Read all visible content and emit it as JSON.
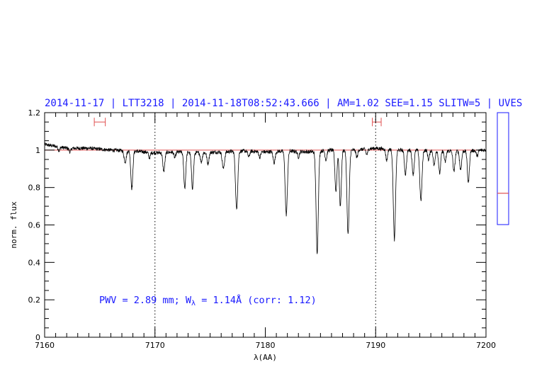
{
  "header": {
    "text": "2014-11-17 | LTT3218 | 2014-11-18T08:52:43.666 | AM=1.02  SEE=1.15  SLITW=5 | UVES"
  },
  "annotation": {
    "prefix": "PWV = 2.89 mm; W",
    "subscript": "λ",
    "suffix": " = 1.14Å (corr: 1.12)"
  },
  "colors": {
    "header": "#1a1aff",
    "spectrum": "#000000",
    "continuum": "#e05050",
    "markers": "#e05050",
    "side_box": "#1a1aff"
  },
  "chart_data": {
    "type": "line",
    "xlabel": "λ(AA)",
    "ylabel": "norm. flux",
    "xlim": [
      7160,
      7200
    ],
    "ylim": [
      0,
      1.2
    ],
    "x_ticks": [
      7160,
      7170,
      7180,
      7190,
      7200
    ],
    "y_ticks": [
      0,
      0.2,
      0.4,
      0.6,
      0.8,
      1,
      1.2
    ],
    "x_tick_labels": [
      "7160",
      "7170",
      "7180",
      "7190",
      "7200"
    ],
    "y_tick_labels": [
      "0",
      "0.2",
      "0.4",
      "0.6",
      "0.8",
      "1",
      "1.2"
    ],
    "continuum_level": 1.0,
    "vertical_dotted_lines": [
      7170,
      7190
    ],
    "range_markers": [
      {
        "x1": 7164.5,
        "x2": 7165.5,
        "y": 1.15
      },
      {
        "x1": 7189.7,
        "x2": 7190.5,
        "y": 1.15
      }
    ],
    "continuum_anchor": [
      [
        7160,
        1.03
      ],
      [
        7162,
        1.01
      ],
      [
        7164,
        1.01
      ],
      [
        7166,
        1.0
      ],
      [
        7168,
        0.995
      ],
      [
        7170,
        0.985
      ],
      [
        7172,
        0.99
      ],
      [
        7174,
        0.985
      ],
      [
        7176,
        0.99
      ],
      [
        7178,
        0.995
      ],
      [
        7180,
        0.99
      ],
      [
        7182,
        0.995
      ],
      [
        7184,
        0.99
      ],
      [
        7186,
        1.0
      ],
      [
        7188,
        1.0
      ],
      [
        7190,
        1.01
      ],
      [
        7192,
        1.0
      ],
      [
        7194,
        1.0
      ],
      [
        7196,
        0.995
      ],
      [
        7198,
        0.995
      ],
      [
        7200,
        1.0
      ]
    ],
    "absorption_lines": [
      {
        "x": 7161.3,
        "depth": 0.02,
        "width": 0.08
      },
      {
        "x": 7162.3,
        "depth": 0.02,
        "width": 0.08
      },
      {
        "x": 7167.3,
        "depth": 0.06,
        "width": 0.1
      },
      {
        "x": 7167.9,
        "depth": 0.2,
        "width": 0.09
      },
      {
        "x": 7169.5,
        "depth": 0.03,
        "width": 0.08
      },
      {
        "x": 7170.8,
        "depth": 0.1,
        "width": 0.09
      },
      {
        "x": 7171.8,
        "depth": 0.03,
        "width": 0.08
      },
      {
        "x": 7172.7,
        "depth": 0.19,
        "width": 0.09
      },
      {
        "x": 7173.4,
        "depth": 0.19,
        "width": 0.09
      },
      {
        "x": 7174.2,
        "depth": 0.05,
        "width": 0.08
      },
      {
        "x": 7174.8,
        "depth": 0.06,
        "width": 0.09
      },
      {
        "x": 7176.2,
        "depth": 0.09,
        "width": 0.1
      },
      {
        "x": 7177.4,
        "depth": 0.31,
        "width": 0.1
      },
      {
        "x": 7178.5,
        "depth": 0.03,
        "width": 0.08
      },
      {
        "x": 7179.5,
        "depth": 0.03,
        "width": 0.08
      },
      {
        "x": 7180.8,
        "depth": 0.06,
        "width": 0.09
      },
      {
        "x": 7181.9,
        "depth": 0.34,
        "width": 0.1
      },
      {
        "x": 7183.0,
        "depth": 0.03,
        "width": 0.08
      },
      {
        "x": 7184.7,
        "depth": 0.54,
        "width": 0.1
      },
      {
        "x": 7185.5,
        "depth": 0.05,
        "width": 0.08
      },
      {
        "x": 7186.4,
        "depth": 0.22,
        "width": 0.09
      },
      {
        "x": 7186.8,
        "depth": 0.3,
        "width": 0.09
      },
      {
        "x": 7187.5,
        "depth": 0.45,
        "width": 0.1
      },
      {
        "x": 7188.3,
        "depth": 0.04,
        "width": 0.08
      },
      {
        "x": 7189.2,
        "depth": 0.03,
        "width": 0.08
      },
      {
        "x": 7191.0,
        "depth": 0.06,
        "width": 0.08
      },
      {
        "x": 7191.7,
        "depth": 0.48,
        "width": 0.1
      },
      {
        "x": 7192.7,
        "depth": 0.13,
        "width": 0.09
      },
      {
        "x": 7193.4,
        "depth": 0.13,
        "width": 0.09
      },
      {
        "x": 7194.1,
        "depth": 0.27,
        "width": 0.1
      },
      {
        "x": 7194.8,
        "depth": 0.05,
        "width": 0.08
      },
      {
        "x": 7195.3,
        "depth": 0.08,
        "width": 0.08
      },
      {
        "x": 7195.8,
        "depth": 0.12,
        "width": 0.09
      },
      {
        "x": 7196.3,
        "depth": 0.06,
        "width": 0.08
      },
      {
        "x": 7197.1,
        "depth": 0.11,
        "width": 0.09
      },
      {
        "x": 7197.7,
        "depth": 0.1,
        "width": 0.09
      },
      {
        "x": 7198.4,
        "depth": 0.17,
        "width": 0.09
      },
      {
        "x": 7199.2,
        "depth": 0.03,
        "width": 0.08
      }
    ],
    "noise_amplitude": 0.006,
    "side_panel": {
      "marker_fraction": 0.28
    }
  }
}
